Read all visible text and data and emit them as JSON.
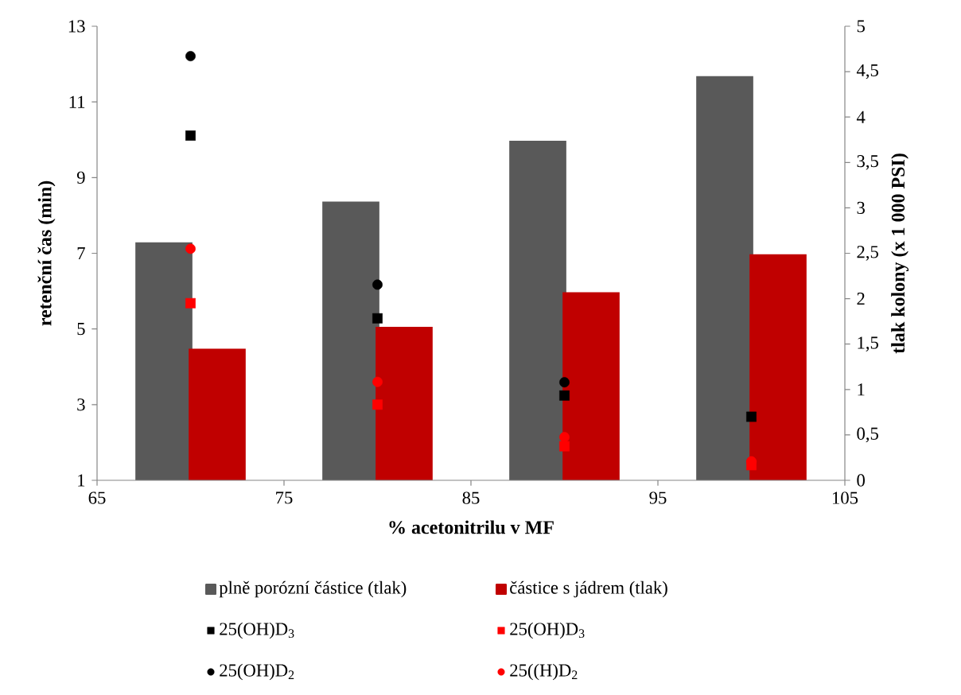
{
  "chart_data": {
    "type": "scatter",
    "xlabel": "% acetonitrilu v MF",
    "ylabel": "retenční čas (min)",
    "y2label": "tlak kolony (x 1 000 PSI)",
    "x": [
      70,
      80,
      90,
      100
    ],
    "xlim": [
      65,
      105
    ],
    "xticks": [
      65,
      75,
      85,
      95,
      105
    ],
    "ylim": [
      1,
      13
    ],
    "yticks": [
      1,
      3,
      5,
      7,
      9,
      11,
      13
    ],
    "y2lim": [
      0,
      5
    ],
    "y2ticks": [
      0,
      {
        "value": 0.5,
        "label": "0,5"
      },
      1,
      {
        "value": 1.5,
        "label": "1,5"
      },
      2,
      {
        "value": 2.5,
        "label": "2,5"
      },
      3,
      {
        "value": 3.5,
        "label": "3,5"
      },
      4,
      {
        "value": 4.5,
        "label": "4,5"
      },
      5
    ],
    "series": [
      {
        "name": "plně porózní částice (tlak)",
        "type": "bar",
        "axis": "y2",
        "color": "#595959",
        "values": [
          2.62,
          3.07,
          3.74,
          4.45
        ]
      },
      {
        "name": "částice s jádrem (tlak)",
        "type": "bar",
        "axis": "y2",
        "color": "#c00000",
        "values": [
          1.45,
          1.69,
          2.07,
          2.49
        ]
      },
      {
        "name": "25(OH)D$_{3}$",
        "axis": "y",
        "marker": "square",
        "color": "#000000",
        "values": [
          10.11,
          5.28,
          3.24,
          2.68
        ]
      },
      {
        "name": "25(OH)D$_{3}$",
        "axis": "y",
        "marker": "square",
        "color": "#ff0000",
        "values": [
          5.68,
          3.0,
          1.9,
          1.4
        ]
      },
      {
        "name": "25(OH)D$_{2}$",
        "axis": "y",
        "marker": "circle",
        "color": "#000000",
        "values": [
          12.21,
          6.17,
          3.59,
          null
        ]
      },
      {
        "name": "25((H)D$_{2}$",
        "axis": "y",
        "marker": "circle",
        "color": "#ff0000",
        "values": [
          7.12,
          3.6,
          2.14,
          1.5
        ]
      }
    ],
    "legend": "bottom"
  }
}
